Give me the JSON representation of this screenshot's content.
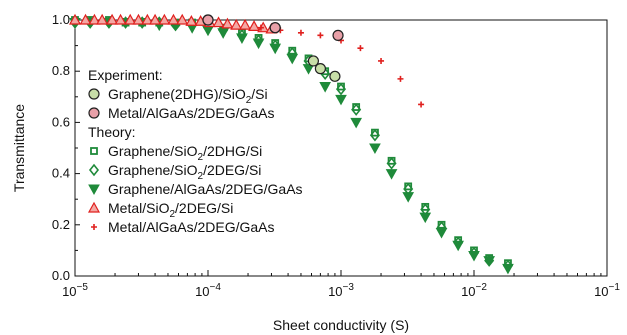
{
  "chart_data": {
    "type": "scatter",
    "xlabel": "Sheet conductivity (S)",
    "ylabel": "Transmittance",
    "xscale": "log",
    "xlim": [
      1e-05,
      0.1
    ],
    "ylim": [
      0.0,
      1.0
    ],
    "x_ticks": [
      1e-05,
      0.0001,
      0.001,
      0.01,
      0.1
    ],
    "x_tick_labels": [
      {
        "base": "10",
        "exp": "−5"
      },
      {
        "base": "10",
        "exp": "−4"
      },
      {
        "base": "10",
        "exp": "−3"
      },
      {
        "base": "10",
        "exp": "−2"
      },
      {
        "base": "10",
        "exp": "−1"
      }
    ],
    "y_ticks": [
      0.0,
      0.2,
      0.4,
      0.6,
      0.8,
      1.0
    ],
    "y_tick_labels": [
      "0.0",
      "0.2",
      "0.4",
      "0.6",
      "0.8",
      "1.0"
    ],
    "grid": false,
    "legend_position": "left",
    "legend": {
      "experiment_header": "Experiment:",
      "theory_header": "Theory:"
    },
    "series": [
      {
        "name": "Graphene(2DHG)/SiO2/Si",
        "label_parts": [
          {
            "t": "Graphene(2DHG)/SiO"
          },
          {
            "t": "2",
            "sub": true
          },
          {
            "t": "/Si"
          }
        ],
        "group": "experiment",
        "marker": "circle-filled",
        "color": "#c8dea8",
        "edge": "#222222",
        "x": [
          0.0001,
          0.00032,
          0.00062,
          0.0007,
          0.0009
        ],
        "y": [
          1.0,
          0.97,
          0.84,
          0.81,
          0.78
        ]
      },
      {
        "name": "Metal/AlGaAs/2DEG/GaAs",
        "label_parts": [
          {
            "t": "Metal/AlGaAs/2DEG/GaAs"
          }
        ],
        "group": "experiment",
        "marker": "circle-filled",
        "color": "#e8a0a8",
        "edge": "#222222",
        "x": [
          0.0001,
          0.00032,
          0.00095
        ],
        "y": [
          1.0,
          0.97,
          0.94
        ]
      },
      {
        "name": "Graphene/SiO2/2DHG/Si",
        "label_parts": [
          {
            "t": "Graphene/SiO"
          },
          {
            "t": "2",
            "sub": true
          },
          {
            "t": "/2DHG/Si"
          }
        ],
        "group": "theory",
        "marker": "square-open",
        "color": "#1f8a3a",
        "x": [
          1e-05,
          1.3e-05,
          1.8e-05,
          2.4e-05,
          3.2e-05,
          4.3e-05,
          5.7e-05,
          7.6e-05,
          0.0001,
          0.00013,
          0.00018,
          0.00024,
          0.00032,
          0.00043,
          0.00057,
          0.00076,
          0.001,
          0.0013,
          0.0018,
          0.0024,
          0.0032,
          0.0043,
          0.0057,
          0.0076,
          0.01,
          0.013,
          0.018
        ],
        "y": [
          1.0,
          1.0,
          1.0,
          0.99,
          0.99,
          0.99,
          0.99,
          0.99,
          0.98,
          0.97,
          0.95,
          0.93,
          0.91,
          0.88,
          0.85,
          0.8,
          0.74,
          0.66,
          0.56,
          0.45,
          0.35,
          0.27,
          0.2,
          0.14,
          0.1,
          0.07,
          0.05
        ]
      },
      {
        "name": "Graphene/SiO2/2DEG/Si",
        "label_parts": [
          {
            "t": "Graphene/SiO"
          },
          {
            "t": "2",
            "sub": true
          },
          {
            "t": "/2DEG/Si"
          }
        ],
        "group": "theory",
        "marker": "diamond-open",
        "color": "#1f8a3a",
        "x": [
          1e-05,
          1.3e-05,
          1.8e-05,
          2.4e-05,
          3.2e-05,
          4.3e-05,
          5.7e-05,
          7.6e-05,
          0.0001,
          0.00013,
          0.00018,
          0.00024,
          0.00032,
          0.00043,
          0.00057,
          0.00076,
          0.001,
          0.0013,
          0.0018,
          0.0024,
          0.0032,
          0.0043,
          0.0057,
          0.0076,
          0.01,
          0.013,
          0.018
        ],
        "y": [
          0.99,
          0.99,
          0.99,
          0.99,
          0.99,
          0.99,
          0.98,
          0.98,
          0.97,
          0.96,
          0.94,
          0.92,
          0.9,
          0.87,
          0.84,
          0.79,
          0.73,
          0.65,
          0.55,
          0.44,
          0.34,
          0.26,
          0.19,
          0.13,
          0.09,
          0.06,
          0.04
        ]
      },
      {
        "name": "Graphene/AlGaAs/2DEG/GaAs",
        "label_parts": [
          {
            "t": "Graphene/AlGaAs/2DEG/GaAs"
          }
        ],
        "group": "theory",
        "marker": "triangle-down",
        "color": "#1f8a3a",
        "x": [
          1e-05,
          1.3e-05,
          1.8e-05,
          2.4e-05,
          3.2e-05,
          4.3e-05,
          5.7e-05,
          7.6e-05,
          0.0001,
          0.00013,
          0.00018,
          0.00024,
          0.00032,
          0.00043,
          0.00057,
          0.00076,
          0.001,
          0.0013,
          0.0018,
          0.0024,
          0.0032,
          0.0043,
          0.0057,
          0.0076,
          0.01,
          0.013,
          0.018
        ],
        "y": [
          0.99,
          0.99,
          0.99,
          0.99,
          0.99,
          0.98,
          0.98,
          0.97,
          0.96,
          0.95,
          0.93,
          0.91,
          0.89,
          0.85,
          0.81,
          0.74,
          0.69,
          0.6,
          0.5,
          0.4,
          0.31,
          0.23,
          0.17,
          0.12,
          0.08,
          0.06,
          0.03
        ]
      },
      {
        "name": "Metal/SiO2/2DEG/Si",
        "label_parts": [
          {
            "t": "Metal/SiO"
          },
          {
            "t": "2",
            "sub": true
          },
          {
            "t": "/2DEG/Si"
          }
        ],
        "group": "theory",
        "marker": "triangle-up-open",
        "color": "#e0201e",
        "x": [
          1e-05,
          1.2e-05,
          1.4e-05,
          1.6e-05,
          1.9e-05,
          2.2e-05,
          2.6e-05,
          3e-05,
          3.5e-05,
          4e-05,
          4.7e-05,
          5.5e-05,
          6.4e-05,
          7.5e-05,
          8.8e-05,
          0.000103,
          0.00012,
          0.00014,
          0.000163,
          0.00019,
          0.000222,
          0.00026,
          0.0003
        ],
        "y": [
          1.0,
          1.0,
          1.0,
          1.0,
          1.0,
          1.0,
          1.0,
          1.0,
          1.0,
          1.0,
          1.0,
          1.0,
          1.0,
          0.995,
          0.995,
          0.99,
          0.99,
          0.985,
          0.98,
          0.98,
          0.975,
          0.97,
          0.965
        ]
      },
      {
        "name": "Metal/AlGaAs/2DEG/GaAs",
        "label_parts": [
          {
            "t": "Metal/AlGaAs/2DEG/GaAs"
          }
        ],
        "group": "theory",
        "marker": "plus",
        "color": "#e0201e",
        "x": [
          0.00025,
          0.00035,
          0.0005,
          0.0007,
          0.001,
          0.0014,
          0.002,
          0.0028,
          0.004
        ],
        "y": [
          0.97,
          0.96,
          0.95,
          0.94,
          0.92,
          0.89,
          0.84,
          0.77,
          0.67
        ]
      }
    ]
  }
}
